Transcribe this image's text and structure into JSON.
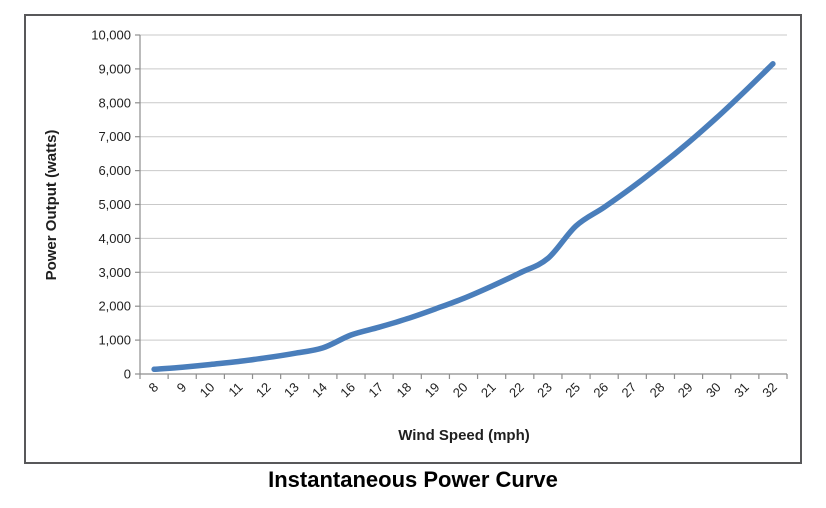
{
  "chart_data": {
    "type": "line",
    "title": "Instantaneous Power Curve",
    "xlabel": "Wind Speed (mph)",
    "ylabel": "Power Output (watts)",
    "categories": [
      "8",
      "9",
      "10",
      "11",
      "12",
      "13",
      "14",
      "16",
      "17",
      "18",
      "19",
      "20",
      "21",
      "22",
      "23",
      "25",
      "26",
      "27",
      "28",
      "29",
      "30",
      "31",
      "32"
    ],
    "series": [
      {
        "name": "Instantaneous Power",
        "values": [
          140,
          200,
          280,
          370,
          480,
          610,
          770,
          1150,
          1380,
          1630,
          1920,
          2230,
          2590,
          2980,
          3410,
          4370,
          4920,
          5510,
          6150,
          6830,
          7560,
          8340,
          9150
        ]
      }
    ],
    "ylim": [
      0,
      10000
    ],
    "y_tick_step": 1000,
    "y_tick_labels": [
      "0",
      "1,000",
      "2,000",
      "3,000",
      "4,000",
      "5,000",
      "6,000",
      "7,000",
      "8,000",
      "9,000",
      "10,000"
    ],
    "grid": "horizontal",
    "legend": "none",
    "colors": {
      "line": "#4A7EBB",
      "gridline": "#c9c9c9",
      "axis": "#8e8e8e",
      "tick_text": "#1f1f1f",
      "frame_border": "#58585a",
      "background": "#ffffff"
    }
  }
}
